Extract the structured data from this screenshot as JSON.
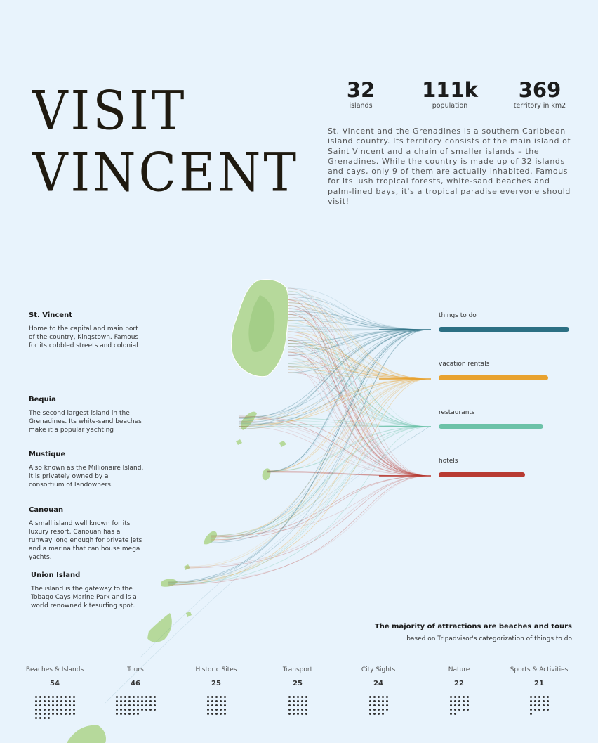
{
  "header": {
    "title_line1": "VISIT",
    "title_line2": "VINCENT"
  },
  "stats": [
    {
      "value": "32",
      "label": "islands"
    },
    {
      "value": "111k",
      "label": "population"
    },
    {
      "value": "369",
      "label": "territory in km2"
    }
  ],
  "intro": "St. Vincent and the Grenadines is a southern Caribbean island country. Its territory consists of the main island of Saint Vincent and a chain of smaller islands – the Grenadines. While the country is made up of 32 islands and cays, only 9 of them are actually inhabited. Famous for its lush tropical forests, white-sand beaches and palm-lined bays, it's a tropical paradise everyone should visit!",
  "islands": [
    {
      "name": "St. Vincent",
      "desc": "Home to the capital and main port of the country, Kingstown. Famous for its cobbled streets and colonial"
    },
    {
      "name": "Bequia",
      "desc": "The second largest island in the Grenadines. Its white-sand beaches make it a popular yachting"
    },
    {
      "name": "Mustique",
      "desc": "Also known as the Millionaire Island, it is privately owned by a consortium of landowners."
    },
    {
      "name": "Canouan",
      "desc": "A small island well known for its luxury resort, Canouan has a runway long enough for private jets and a marina that can house mega yachts."
    },
    {
      "name": "Union Island",
      "desc": "The island is the gateway to the Tobago Cays Marine Park and is a world renowned kitesurfing spot."
    }
  ],
  "categories": [
    {
      "label": "things to do",
      "color": "#2b6f83",
      "share": 1.0
    },
    {
      "label": "vacation rentals",
      "color": "#e8a22f",
      "share": 0.84
    },
    {
      "label": "restaurants",
      "color": "#6cc2a8",
      "share": 0.8
    },
    {
      "label": "hotels",
      "color": "#b83a32",
      "share": 0.66
    }
  ],
  "things_to_do": {
    "title": "The majority of attractions are beaches and tours",
    "note": "based on Tripadvisor's categorization of things to do",
    "items": [
      {
        "label": "Beaches & Islands",
        "count": 54
      },
      {
        "label": "Tours",
        "count": 46
      },
      {
        "label": "Historic Sites",
        "count": 25
      },
      {
        "label": "Transport",
        "count": 25
      },
      {
        "label": "City Sights",
        "count": 24
      },
      {
        "label": "Nature",
        "count": 22
      },
      {
        "label": "Sports & Activities",
        "count": 21
      }
    ]
  }
}
